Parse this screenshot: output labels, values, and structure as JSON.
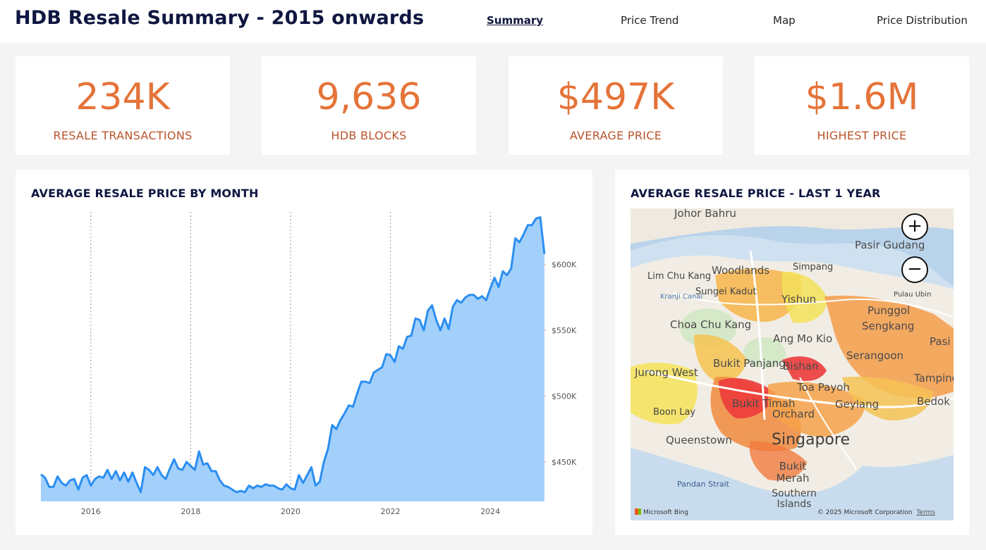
{
  "header": {
    "title": "HDB Resale Summary - 2015 onwards",
    "nav": [
      "Summary",
      "Price Trend",
      "Map",
      "Price Distribution"
    ],
    "active_nav": "Summary"
  },
  "kpis": [
    {
      "value": "234K",
      "label": "RESALE TRANSACTIONS"
    },
    {
      "value": "9,636",
      "label": "HDB BLOCKS"
    },
    {
      "value": "$497K",
      "label": "AVERAGE PRICE"
    },
    {
      "value": "$1.6M",
      "label": "HIGHEST PRICE"
    }
  ],
  "line_panel": {
    "title": "AVERAGE RESALE PRICE BY MONTH"
  },
  "map_panel": {
    "title": "AVERAGE RESALE PRICE - LAST 1 YEAR",
    "zoom_in": "+",
    "zoom_out": "−",
    "labels": {
      "johor_bahru": "Johor Bahru",
      "pasir_gudang": "Pasir Gudang",
      "woodlands": "Woodlands",
      "simpang": "Simpang",
      "lim_chu_kang": "Lim Chu Kang",
      "kranji_canal": "Kranji Canal",
      "sungei_kadut": "Sungei Kadut",
      "yishun": "Yishun",
      "pulau_ubin": "Pulau Ubin",
      "punggol": "Punggol",
      "sengkang": "Sengkang",
      "choa_chu_kang": "Choa Chu Kang",
      "ang_mo_kio": "Ang Mo Kio",
      "serangoon": "Serangoon",
      "pasir_ris": "Pasi",
      "jurong_west": "Jurong West",
      "bukit_panjang": "Bukit Panjang",
      "bishan": "Bishan",
      "toa_payoh": "Toa Payoh",
      "tampines": "Tampines",
      "boon_lay": "Boon Lay",
      "bukit_timah": "Bukit Timah",
      "orchard": "Orchard",
      "geylang": "Geylang",
      "bedok": "Bedok",
      "queenstown": "Queenstown",
      "singapore": "Singapore",
      "pandan_strait": "Pandan Strait",
      "bukit_merah": "Bukit Merah",
      "southern_islands": "Southern Islands"
    },
    "bing": "Microsoft Bing",
    "copyright": "© 2025 Microsoft Corporation",
    "terms": "Terms"
  },
  "colors": {
    "accent": "#e57338",
    "title": "#0f1640",
    "line": "#2b8ef0",
    "area": "#a3d0fb"
  },
  "chart_data": {
    "type": "area",
    "title": "AVERAGE RESALE PRICE BY MONTH",
    "xlabel": "",
    "ylabel": "",
    "x_start": 2015.0,
    "x_step": 0.08333,
    "xlim": [
      2015,
      2025
    ],
    "x_ticks": [
      2016,
      2018,
      2020,
      2022,
      2024
    ],
    "x_tick_labels": [
      "2016",
      "2018",
      "2020",
      "2022",
      "2024"
    ],
    "ylim": [
      420000,
      640000
    ],
    "y_ticks": [
      450000,
      500000,
      550000,
      600000
    ],
    "y_tick_labels": [
      "$450K",
      "$500K",
      "$550K",
      "$600K"
    ],
    "gridlines": "vertical-dotted",
    "series": [
      {
        "name": "Average resale price",
        "values": [
          440500,
          438000,
          431000,
          431000,
          439000,
          434000,
          432000,
          436000,
          437000,
          429000,
          438000,
          440000,
          432000,
          437000,
          439000,
          438000,
          444000,
          437000,
          443000,
          436000,
          442000,
          435000,
          442000,
          434000,
          427000,
          446000,
          444000,
          440000,
          446000,
          440000,
          437000,
          445000,
          452000,
          445000,
          444000,
          450000,
          447000,
          444000,
          458000,
          448000,
          449000,
          443000,
          443000,
          436000,
          432000,
          431000,
          429000,
          427000,
          428000,
          427000,
          432000,
          430000,
          432000,
          431000,
          433000,
          432000,
          432000,
          430000,
          429000,
          433000,
          430000,
          429000,
          440000,
          434000,
          440000,
          446000,
          432000,
          435000,
          450000,
          460000,
          478000,
          475000,
          482000,
          487000,
          493000,
          492000,
          502000,
          511000,
          511000,
          510000,
          518000,
          520000,
          522000,
          532000,
          531000,
          526000,
          538000,
          536000,
          545000,
          546000,
          559000,
          558000,
          550000,
          565000,
          569000,
          558000,
          550000,
          559000,
          551000,
          568000,
          573000,
          571000,
          575000,
          577000,
          577000,
          574000,
          576000,
          573000,
          582000,
          590000,
          583000,
          595000,
          592000,
          597000,
          620000,
          617000,
          623000,
          630000,
          630000,
          635000,
          636000,
          608000
        ]
      }
    ]
  }
}
